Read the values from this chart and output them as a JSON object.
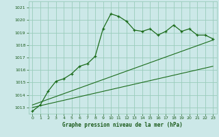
{
  "xlabel": "Graphe pression niveau de la mer (hPa)",
  "background_color": "#cce8e8",
  "grid_color": "#99ccbb",
  "line_color": "#1a6b1a",
  "xlim": [
    -0.5,
    23.5
  ],
  "ylim": [
    1012.5,
    1021.5
  ],
  "yticks": [
    1013,
    1014,
    1015,
    1016,
    1017,
    1018,
    1019,
    1020,
    1021
  ],
  "xticks": [
    0,
    1,
    2,
    3,
    4,
    5,
    6,
    7,
    8,
    9,
    10,
    11,
    12,
    13,
    14,
    15,
    16,
    17,
    18,
    19,
    20,
    21,
    22,
    23
  ],
  "line1_x": [
    0,
    1,
    2,
    3,
    4,
    5,
    6,
    7,
    8,
    9,
    10,
    11,
    12,
    13,
    14,
    15,
    16,
    17,
    18,
    19,
    20,
    21,
    22,
    23
  ],
  "line1_y": [
    1012.7,
    1013.2,
    1014.3,
    1015.1,
    1015.3,
    1015.7,
    1016.3,
    1016.5,
    1017.1,
    1019.3,
    1020.5,
    1020.3,
    1019.9,
    1019.2,
    1019.1,
    1019.3,
    1018.8,
    1019.1,
    1019.6,
    1019.1,
    1019.3,
    1018.8,
    1018.8,
    1018.5
  ],
  "line2_x": [
    0,
    23
  ],
  "line2_y": [
    1013.0,
    1016.3
  ],
  "line3_x": [
    0,
    23
  ],
  "line3_y": [
    1013.2,
    1018.4
  ]
}
